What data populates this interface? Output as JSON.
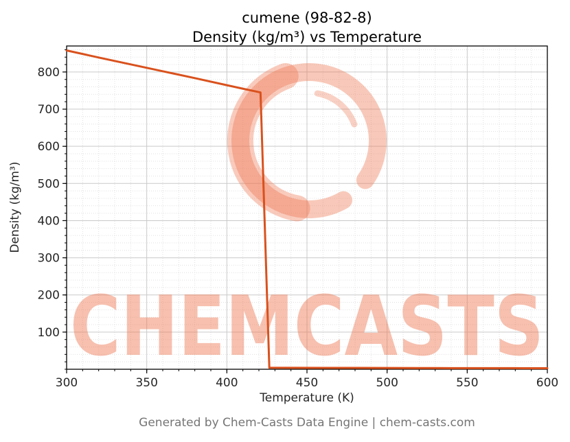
{
  "header": {
    "title_line1": "cumene (98-82-8)",
    "title_line2": "Density (kg/m³) vs Temperature"
  },
  "footer": {
    "text": "Generated by Chem-Casts Data Engine | chem-casts.com"
  },
  "watermark": {
    "text": "CHEMCASTS",
    "color": "#ee7752"
  },
  "chart_data": {
    "type": "line",
    "title": "cumene (98-82-8)",
    "subtitle": "Density (kg/m³) vs Temperature",
    "xlabel": "Temperature (K)",
    "ylabel": "Density (kg/m³)",
    "xlim": [
      300,
      600
    ],
    "ylim": [
      0,
      870
    ],
    "xticks": [
      300,
      350,
      400,
      450,
      500,
      550,
      600
    ],
    "yticks": [
      100,
      200,
      300,
      400,
      500,
      600,
      700,
      800
    ],
    "minor_x_step": 10,
    "minor_y_step": 20,
    "grid": true,
    "legend": "none",
    "line_color": "#d9511d",
    "line_width": 3,
    "grid_major_color": "#c9c9c9",
    "grid_minor_color": "#e0e0e0",
    "tick_text_color": "#262626",
    "spine_color": "#000000",
    "series": [
      {
        "name": "density",
        "points": [
          [
            300,
            858
          ],
          [
            320,
            839
          ],
          [
            340,
            820.5
          ],
          [
            360,
            802
          ],
          [
            380,
            783.5
          ],
          [
            400,
            764.5
          ],
          [
            410,
            755
          ],
          [
            421,
            745
          ],
          [
            426.5,
            4.2
          ],
          [
            440,
            4.0
          ],
          [
            460,
            3.8
          ],
          [
            480,
            3.6
          ],
          [
            500,
            3.4
          ],
          [
            520,
            3.2
          ],
          [
            540,
            3.1
          ],
          [
            560,
            3.0
          ],
          [
            580,
            2.9
          ],
          [
            600,
            2.8
          ]
        ]
      }
    ]
  }
}
